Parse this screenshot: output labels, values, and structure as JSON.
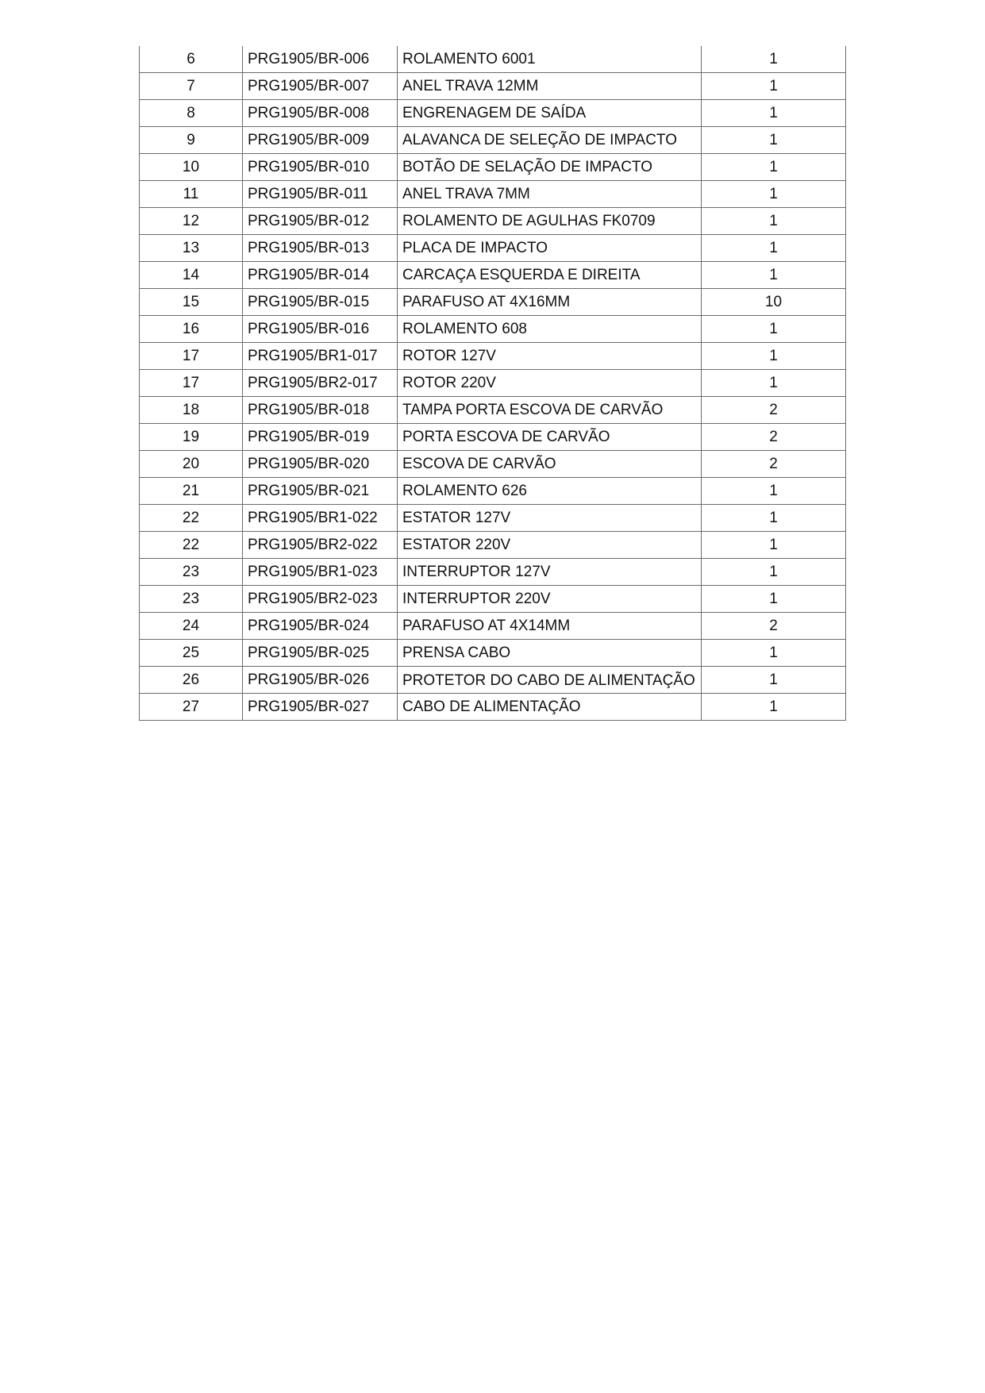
{
  "parts_table": {
    "rows": [
      {
        "item": "6",
        "code": "PRG1905/BR-006",
        "description": "ROLAMENTO 6001",
        "qty": "1"
      },
      {
        "item": "7",
        "code": "PRG1905/BR-007",
        "description": "ANEL TRAVA 12MM",
        "qty": "1"
      },
      {
        "item": "8",
        "code": "PRG1905/BR-008",
        "description": "ENGRENAGEM DE SAÍDA",
        "qty": "1"
      },
      {
        "item": "9",
        "code": "PRG1905/BR-009",
        "description": "ALAVANCA DE SELEÇÃO DE IMPACTO",
        "qty": "1"
      },
      {
        "item": "10",
        "code": "PRG1905/BR-010",
        "description": "BOTÃO DE SELAÇÃO DE IMPACTO",
        "qty": "1"
      },
      {
        "item": "11",
        "code": "PRG1905/BR-011",
        "description": "ANEL TRAVA 7MM",
        "qty": "1"
      },
      {
        "item": "12",
        "code": "PRG1905/BR-012",
        "description": "ROLAMENTO DE AGULHAS FK0709",
        "qty": "1"
      },
      {
        "item": "13",
        "code": "PRG1905/BR-013",
        "description": "PLACA DE IMPACTO",
        "qty": "1"
      },
      {
        "item": "14",
        "code": "PRG1905/BR-014",
        "description": "CARCAÇA ESQUERDA E DIREITA",
        "qty": "1"
      },
      {
        "item": "15",
        "code": "PRG1905/BR-015",
        "description": "PARAFUSO AT 4X16MM",
        "qty": "10"
      },
      {
        "item": "16",
        "code": "PRG1905/BR-016",
        "description": "ROLAMENTO 608",
        "qty": "1"
      },
      {
        "item": "17",
        "code": "PRG1905/BR1-017",
        "description": "ROTOR 127V",
        "qty": "1"
      },
      {
        "item": "17",
        "code": "PRG1905/BR2-017",
        "description": "ROTOR 220V",
        "qty": "1"
      },
      {
        "item": "18",
        "code": "PRG1905/BR-018",
        "description": "TAMPA PORTA ESCOVA DE CARVÃO",
        "qty": "2"
      },
      {
        "item": "19",
        "code": "PRG1905/BR-019",
        "description": "PORTA ESCOVA DE CARVÃO",
        "qty": "2"
      },
      {
        "item": "20",
        "code": "PRG1905/BR-020",
        "description": "ESCOVA DE CARVÃO",
        "qty": "2"
      },
      {
        "item": "21",
        "code": "PRG1905/BR-021",
        "description": "ROLAMENTO 626",
        "qty": "1"
      },
      {
        "item": "22",
        "code": "PRG1905/BR1-022",
        "description": "ESTATOR 127V",
        "qty": "1"
      },
      {
        "item": "22",
        "code": "PRG1905/BR2-022",
        "description": "ESTATOR 220V",
        "qty": "1"
      },
      {
        "item": "23",
        "code": "PRG1905/BR1-023",
        "description": "INTERRUPTOR 127V",
        "qty": "1"
      },
      {
        "item": "23",
        "code": "PRG1905/BR2-023",
        "description": "INTERRUPTOR 220V",
        "qty": "1"
      },
      {
        "item": "24",
        "code": "PRG1905/BR-024",
        "description": "PARAFUSO AT 4X14MM",
        "qty": "2"
      },
      {
        "item": "25",
        "code": "PRG1905/BR-025",
        "description": "PRENSA CABO",
        "qty": "1"
      },
      {
        "item": "26",
        "code": "PRG1905/BR-026",
        "description": "PROTETOR DO CABO DE ALIMENTAÇÃO",
        "qty": "1"
      },
      {
        "item": "27",
        "code": "PRG1905/BR-027",
        "description": "CABO DE ALIMENTAÇÃO",
        "qty": "1"
      }
    ]
  }
}
